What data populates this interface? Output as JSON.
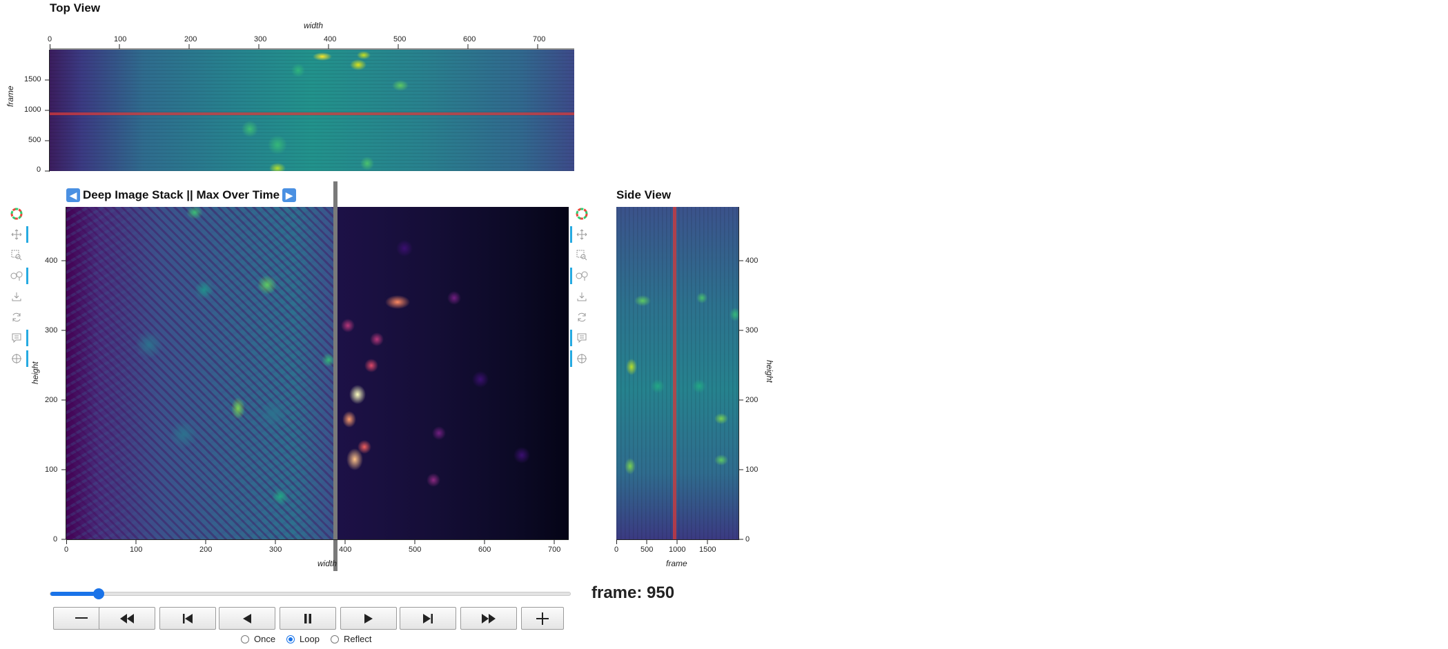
{
  "top_view": {
    "title": "Top View",
    "xlabel": "width",
    "ylabel": "frame",
    "x_ticks": [
      "0",
      "100",
      "200",
      "300",
      "400",
      "500",
      "600",
      "700"
    ],
    "y_ticks": [
      "0",
      "500",
      "1000",
      "1500"
    ],
    "marker_frame": 950
  },
  "main_view": {
    "title_left_icon": "⬅️",
    "title": "Deep Image Stack || Max Over Time",
    "title_right_icon": "➡️",
    "xlabel": "width",
    "ylabel": "height",
    "x_ticks": [
      "0",
      "100",
      "200",
      "300",
      "400",
      "500",
      "600",
      "700"
    ],
    "y_ticks": [
      "0",
      "100",
      "200",
      "300",
      "400"
    ],
    "left_panel_colormap": "viridis",
    "right_panel_colormap": "magma"
  },
  "side_view": {
    "title": "Side View",
    "xlabel": "frame",
    "ylabel": "height",
    "x_ticks": [
      "0",
      "500",
      "1000",
      "1500"
    ],
    "y_ticks": [
      "0",
      "100",
      "200",
      "300",
      "400"
    ],
    "marker_frame": 950
  },
  "toolbar": {
    "tools": [
      "bokeh-logo-icon",
      "pan-icon",
      "box-zoom-icon",
      "wheel-zoom-icon",
      "save-icon",
      "reset-icon",
      "hover-icon",
      "crosshair-icon"
    ]
  },
  "player": {
    "frame_label": "frame: 950",
    "frame_value": 950,
    "frame_max": 1999,
    "buttons": [
      "slower-button",
      "first-frame-button",
      "step-back-button",
      "reverse-button",
      "pause-button",
      "play-button",
      "step-forward-button",
      "last-frame-button",
      "faster-button"
    ],
    "loop_options": [
      "Once",
      "Loop",
      "Reflect"
    ],
    "loop_selected": "Loop"
  },
  "colors": {
    "viridis_dark": "#440154",
    "viridis_mid": "#21918c",
    "viridis_bright": "#fde725",
    "magma_dark": "#000004",
    "magma_mid": "#b73779",
    "marker_red": "#d73a3a",
    "slider_blue": "#1a73e8",
    "toolbar_accent": "#26aae1"
  }
}
